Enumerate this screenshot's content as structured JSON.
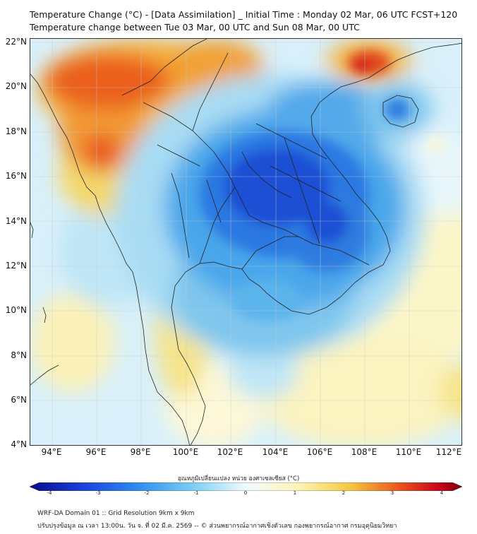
{
  "title": {
    "line1": "Temperature Change (°C) - [Data Assimilation] _ Initial Time : Monday 02 Mar, 06 UTC FCST+120",
    "line2": "Temperature change between Tue 03 Mar, 00 UTC and Sun 08 Mar, 00 UTC"
  },
  "map": {
    "lat_labels": [
      "22°N",
      "20°N",
      "18°N",
      "16°N",
      "14°N",
      "12°N",
      "10°N",
      "8°N",
      "6°N",
      "4°N"
    ],
    "lon_labels": [
      "94°E",
      "96°E",
      "98°E",
      "100°E",
      "102°E",
      "104°E",
      "106°E",
      "108°E",
      "110°E",
      "112°E"
    ],
    "lat_range": [
      4,
      22
    ],
    "lon_range": [
      93,
      112.4
    ],
    "field": "2m temperature change",
    "regions": {
      "warm_north_myanmar": "Northern Myanmar / northern Thailand warming up to about +3 °C",
      "warm_south_china": "South China coast near 21-22°N, 108-109°E warming about +3 °C",
      "cool_indochina": "Laos / northeast Thailand / Cambodia / central Vietnam cooling about -3 °C",
      "cool_hainan": "Hainan area cooling about -2 °C"
    }
  },
  "colorbar": {
    "title": "อุณหภูมิเปลี่ยนแปลง หน่วย องศาเซลเซียส (°C)",
    "ticks": [
      "-4",
      "-3",
      "-2",
      "-1",
      "0",
      "1",
      "2",
      "3",
      "4"
    ],
    "min": -4,
    "max": 4,
    "colors": [
      "#0a0a8a",
      "#1a3fd8",
      "#2f8cf0",
      "#7ed0f5",
      "#f2fbff",
      "#fff5b8",
      "#f5c842",
      "#e8501c",
      "#c4001a",
      "#7a0010"
    ]
  },
  "footer": {
    "line1": "WRF-DA Domain 01 :: Grid Resolution 9km x 9km",
    "line2": "ปรับปรุงข้อมูล ณ เวลา 13:00น. วัน จ. ที่ 02 มี.ค. 2569 -- © ส่วนพยากรณ์อากาศเชิงตัวเลข กองพยากรณ์อากาศ กรมอุตุนิยมวิทยา"
  }
}
